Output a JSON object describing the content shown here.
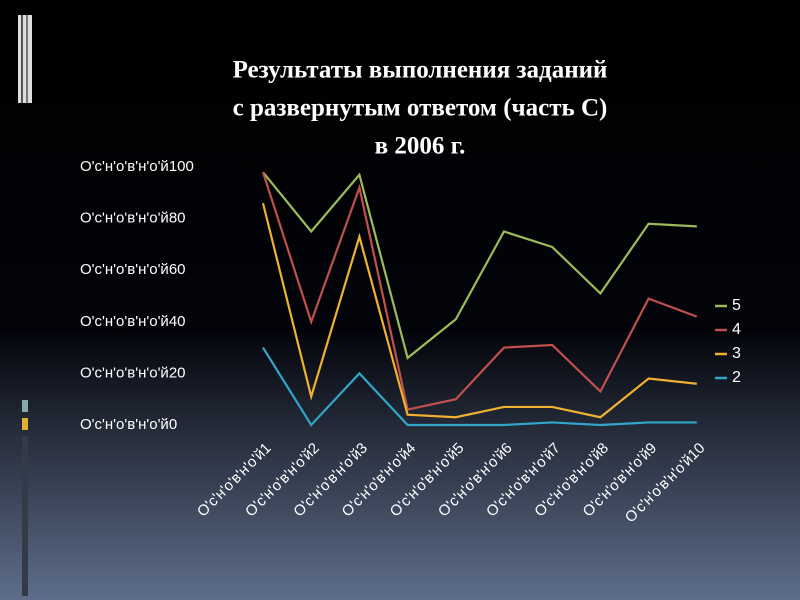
{
  "chart_data": {
    "type": "line",
    "title": [
      "Результаты выполнения заданий",
      "с развернутым ответом (часть С)",
      "в 2006 г."
    ],
    "categories": [
      "O'c'н'o'в'н'o'й1",
      "O'c'н'o'в'н'o'й2",
      "O'c'н'o'в'н'o'й3",
      "O'c'н'o'в'н'o'й4",
      "O'c'н'o'в'н'o'й5",
      "O'c'н'o'в'н'o'й6",
      "O'c'н'o'в'н'o'й7",
      "O'c'н'o'в'н'o'й8",
      "O'c'н'o'в'н'o'й9",
      "O'c'н'o'в'н'o'й10"
    ],
    "series": [
      {
        "name": "5",
        "color": "#9bbb59",
        "values": [
          98,
          75,
          97,
          26,
          41,
          75,
          69,
          51,
          78,
          77
        ]
      },
      {
        "name": "4",
        "color": "#c0504d",
        "values": [
          98,
          40,
          92,
          6,
          10,
          30,
          31,
          13,
          49,
          42
        ]
      },
      {
        "name": "3",
        "color": "#f0b030",
        "values": [
          86,
          11,
          73,
          4,
          3,
          7,
          7,
          3,
          18,
          16
        ]
      },
      {
        "name": "2",
        "color": "#31a6c8",
        "values": [
          30,
          0,
          20,
          0,
          0,
          0,
          1,
          0,
          1,
          1
        ]
      }
    ],
    "ylim": [
      0,
      100
    ],
    "yticks": [
      {
        "value": 0,
        "label": "O'c'н'o'в'н'o'й0"
      },
      {
        "value": 20,
        "label": "O'c'н'o'в'н'o'й20"
      },
      {
        "value": 40,
        "label": "O'c'н'o'в'н'o'й40"
      },
      {
        "value": 60,
        "label": "O'c'н'o'в'н'o'й60"
      },
      {
        "value": 80,
        "label": "O'c'н'o'в'н'o'й80"
      },
      {
        "value": 100,
        "label": "O'c'н'o'в'н'o'й100"
      }
    ],
    "grid": false,
    "legend": "right"
  }
}
